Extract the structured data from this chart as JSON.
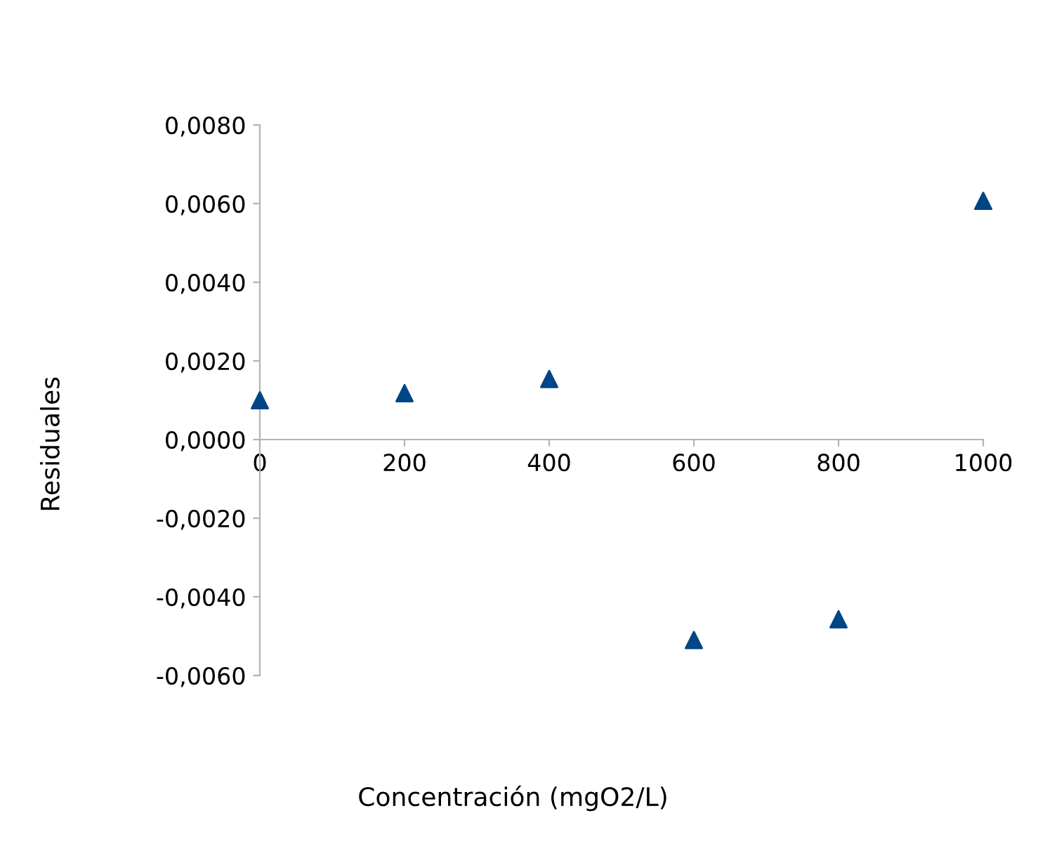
{
  "chart_data": {
    "type": "scatter",
    "xlabel": "Concentración (mgO2/L)",
    "ylabel": "Residuales",
    "x": [
      0,
      200,
      400,
      600,
      800,
      1000
    ],
    "series": [
      {
        "color": "#004586",
        "values": [
          0.001,
          0.00118,
          0.00154,
          -0.0051,
          -0.00457,
          0.00607
        ]
      }
    ],
    "marker": "triangle",
    "xlim": [
      0,
      1000
    ],
    "xticks": [
      0,
      200,
      400,
      600,
      800,
      1000
    ],
    "ylim": [
      -0.006,
      0.008
    ],
    "yticks": [
      {
        "value": -0.006,
        "label": "-0,0060"
      },
      {
        "value": -0.004,
        "label": "-0,0040"
      },
      {
        "value": -0.002,
        "label": "-0,0020"
      },
      {
        "value": 0,
        "label": "0,0000"
      },
      {
        "value": 0.002,
        "label": "0,0020"
      },
      {
        "value": 0.004,
        "label": "0,0040"
      },
      {
        "value": 0.006,
        "label": "0,0060"
      },
      {
        "value": 0.008,
        "label": "0,0080"
      }
    ],
    "grid": false,
    "legend": false
  }
}
